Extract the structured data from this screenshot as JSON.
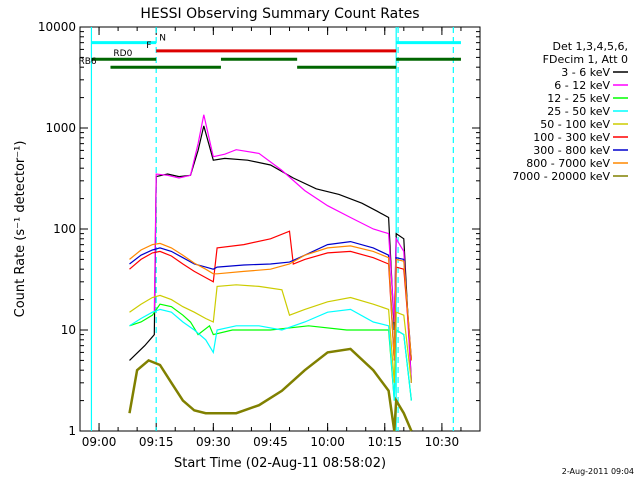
{
  "chart_data": {
    "type": "line",
    "title": "HESSI Observing Summary Count Rates",
    "xlabel": "Start Time (02-Aug-11 08:58:02)",
    "ylabel": "Count Rate (s⁻¹ detector⁻¹)",
    "yscale": "log",
    "ylim": [
      1,
      10000
    ],
    "xlim_minutes_after_0900": [
      -5,
      100
    ],
    "x_ticks": [
      "09:00",
      "09:15",
      "09:30",
      "09:45",
      "10:00",
      "10:15",
      "10:30"
    ],
    "y_ticks": [
      "1",
      "10",
      "100",
      "1000",
      "10000"
    ],
    "legend": {
      "position": "right",
      "header": [
        "Det 1,3,4,5,6,",
        "FDecim 1, Att 0"
      ]
    },
    "footer_date": "2-Aug-2011 09:04",
    "series": [
      {
        "name": "3 - 6 keV",
        "color": "#000000",
        "x": [
          "09:08",
          "09:12",
          "09:14.5",
          "09:15",
          "09:18",
          "09:21",
          "09:24",
          "09:26",
          "09:27.5",
          "09:30",
          "09:33",
          "09:39",
          "09:45",
          "09:51",
          "09:57",
          "10:03",
          "10:09",
          "10:13",
          "10:16",
          "10:17.5",
          "10:18",
          "10:20",
          "10:22"
        ],
        "y": [
          5,
          7,
          9,
          330,
          350,
          330,
          340,
          600,
          1050,
          480,
          500,
          480,
          430,
          320,
          250,
          220,
          180,
          150,
          130,
          10,
          90,
          80,
          3
        ]
      },
      {
        "name": "6 - 12 keV",
        "color": "#ff00ff",
        "x": [
          "09:14.5",
          "09:15",
          "09:18",
          "09:21",
          "09:24",
          "09:26",
          "09:27.5",
          "09:30",
          "09:33",
          "09:36",
          "09:42",
          "09:48",
          "09:54",
          "10:00",
          "10:06",
          "10:12",
          "10:16",
          "10:17.5",
          "10:18",
          "10:20",
          "10:22"
        ],
        "y": [
          15,
          350,
          340,
          320,
          340,
          700,
          1350,
          520,
          550,
          610,
          560,
          380,
          240,
          170,
          130,
          100,
          90,
          12,
          80,
          60,
          3
        ]
      },
      {
        "name": "12 - 25 keV",
        "color": "#00ff00",
        "x": [
          "09:08",
          "09:11",
          "09:14",
          "09:16",
          "09:19",
          "09:22",
          "09:24",
          "09:26",
          "09:29",
          "09:30",
          "09:35",
          "09:45",
          "09:55",
          "10:05",
          "10:12",
          "10:16",
          "10:17.5",
          "10:18",
          "10:20",
          "10:22"
        ],
        "y": [
          11,
          12,
          14,
          18,
          17,
          14,
          12,
          9,
          11,
          9,
          10,
          10,
          11,
          10,
          10,
          10,
          2,
          10,
          9,
          2
        ]
      },
      {
        "name": "25 - 50 keV",
        "color": "#00ffff",
        "x": [
          "09:08",
          "09:11",
          "09:14",
          "09:16",
          "09:19",
          "09:22",
          "09:25",
          "09:28",
          "09:30",
          "09:31",
          "09:36",
          "09:42",
          "09:48",
          "09:54",
          "10:00",
          "10:06",
          "10:12",
          "10:16",
          "10:17.5",
          "10:18",
          "10:20",
          "10:22"
        ],
        "y": [
          11,
          13,
          15,
          16,
          15,
          12,
          10,
          8,
          6,
          10,
          11,
          11,
          10,
          12,
          15,
          16,
          12,
          11,
          2,
          10,
          9,
          2
        ]
      },
      {
        "name": "50 - 100 keV",
        "color": "#cccc00",
        "x": [
          "09:08",
          "09:11",
          "09:14",
          "09:16",
          "09:19",
          "09:22",
          "09:25",
          "09:28",
          "09:30",
          "09:31",
          "09:36",
          "09:42",
          "09:48",
          "09:50",
          "09:54",
          "10:00",
          "10:06",
          "10:12",
          "10:16",
          "10:17.5",
          "10:18",
          "10:20",
          "10:22"
        ],
        "y": [
          15,
          18,
          21,
          22,
          20,
          17,
          15,
          13,
          12,
          27,
          28,
          27,
          25,
          14,
          16,
          19,
          21,
          18,
          16,
          3,
          15,
          14,
          3
        ]
      },
      {
        "name": "100 - 300 keV",
        "color": "#ff0000",
        "x": [
          "09:08",
          "09:11",
          "09:14",
          "09:16",
          "09:19",
          "09:22",
          "09:25",
          "09:28",
          "09:30",
          "09:31",
          "09:38",
          "09:45",
          "09:50",
          "09:51",
          "09:54",
          "10:00",
          "10:06",
          "10:12",
          "10:16",
          "10:17.5",
          "10:18",
          "10:20",
          "10:22"
        ],
        "y": [
          40,
          50,
          58,
          60,
          54,
          45,
          38,
          33,
          30,
          65,
          70,
          80,
          95,
          45,
          50,
          58,
          60,
          52,
          45,
          5,
          42,
          40,
          5
        ]
      },
      {
        "name": "300 - 800 keV",
        "color": "#0000cc",
        "x": [
          "09:08",
          "09:11",
          "09:14",
          "09:16",
          "09:19",
          "09:22",
          "09:25",
          "09:28",
          "09:30",
          "09:31",
          "09:38",
          "09:45",
          "09:50",
          "09:54",
          "10:00",
          "10:06",
          "10:12",
          "10:16",
          "10:17.5",
          "10:18",
          "10:20",
          "10:22"
        ],
        "y": [
          45,
          55,
          62,
          65,
          60,
          52,
          45,
          42,
          40,
          42,
          44,
          45,
          47,
          55,
          70,
          75,
          65,
          55,
          5,
          52,
          50,
          5
        ]
      },
      {
        "name": "800 - 7000 keV",
        "color": "#ff8800",
        "x": [
          "09:08",
          "09:11",
          "09:14",
          "09:16",
          "09:19",
          "09:22",
          "09:25",
          "09:28",
          "09:30",
          "09:31",
          "09:38",
          "09:45",
          "09:50",
          "09:54",
          "10:00",
          "10:06",
          "10:12",
          "10:16",
          "10:17.5",
          "10:18",
          "10:20",
          "10:22"
        ],
        "y": [
          50,
          62,
          70,
          72,
          65,
          55,
          46,
          40,
          36,
          36,
          38,
          40,
          45,
          55,
          65,
          68,
          60,
          52,
          5,
          50,
          48,
          5
        ]
      },
      {
        "name": "7000 - 20000 keV",
        "color": "#808000",
        "x": [
          "09:08",
          "09:10",
          "09:13",
          "09:16",
          "09:19",
          "09:22",
          "09:25",
          "09:28",
          "09:31",
          "09:36",
          "09:42",
          "09:48",
          "09:54",
          "10:00",
          "10:06",
          "10:12",
          "10:16",
          "10:17.5",
          "10:18",
          "10:20",
          "10:22"
        ],
        "y": [
          1.5,
          4,
          5,
          4.5,
          3,
          2,
          1.6,
          1.5,
          1.5,
          1.5,
          1.8,
          2.5,
          4,
          6,
          6.5,
          4,
          2.5,
          1,
          2,
          1.5,
          1
        ]
      }
    ],
    "attenuator_bars": [
      {
        "label": "N",
        "color": "#00ffff",
        "segments": [
          [
            "08:58",
            "09:15"
          ],
          [
            "10:18",
            "10:35"
          ]
        ],
        "level": 7000
      },
      {
        "label": "F",
        "color": "#dd0000",
        "segments": [
          [
            "09:15",
            "10:18"
          ]
        ],
        "level": 5800
      },
      {
        "label": "RD0",
        "color": "#006600",
        "segments": [
          [
            "08:58",
            "09:15"
          ],
          [
            "09:32",
            "09:52"
          ],
          [
            "10:18",
            "10:35"
          ]
        ],
        "level": 4800
      },
      {
        "label": "RB6",
        "color": "#006600",
        "segments": [
          [
            "09:03",
            "09:32"
          ],
          [
            "09:52",
            "10:18"
          ]
        ],
        "level": 4000
      }
    ],
    "vertical_markers": [
      {
        "x": "08:58",
        "style": "solid",
        "color": "#00ffff"
      },
      {
        "x": "09:15",
        "style": "dashed",
        "color": "#00ffff"
      },
      {
        "x": "10:18",
        "style": "solid",
        "color": "#00ffff"
      },
      {
        "x": "10:18.5",
        "style": "dashed",
        "color": "#00ffff"
      },
      {
        "x": "10:33",
        "style": "dashed",
        "color": "#00ffff"
      }
    ]
  }
}
